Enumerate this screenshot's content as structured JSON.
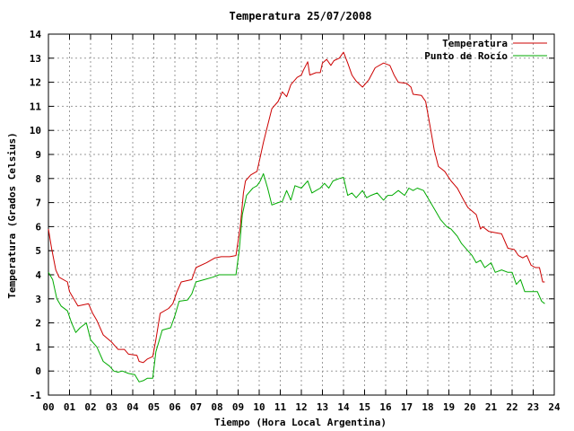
{
  "chart_data": {
    "type": "line",
    "title": "Temperatura 25/07/2008",
    "xlabel": "Tiempo (Hora Local Argentina)",
    "ylabel": "Temperatura (Grados Celsius)",
    "xlim": [
      0,
      24
    ],
    "ylim": [
      -1,
      14
    ],
    "xticks": [
      "00",
      "01",
      "02",
      "03",
      "04",
      "05",
      "06",
      "07",
      "08",
      "09",
      "10",
      "11",
      "12",
      "13",
      "14",
      "15",
      "16",
      "17",
      "18",
      "19",
      "20",
      "21",
      "22",
      "23",
      "24"
    ],
    "yticks": [
      "-1",
      "0",
      "1",
      "2",
      "3",
      "4",
      "5",
      "6",
      "7",
      "8",
      "9",
      "10",
      "11",
      "12",
      "13",
      "14"
    ],
    "grid": true,
    "legend_position": "top-right",
    "series": [
      {
        "name": "Temperatura",
        "color": "#cc0000",
        "points": [
          [
            0.0,
            5.9
          ],
          [
            0.15,
            5.1
          ],
          [
            0.35,
            4.2
          ],
          [
            0.5,
            3.9
          ],
          [
            0.9,
            3.7
          ],
          [
            1.0,
            3.3
          ],
          [
            1.4,
            2.7
          ],
          [
            1.9,
            2.8
          ],
          [
            2.1,
            2.4
          ],
          [
            2.3,
            2.1
          ],
          [
            2.6,
            1.5
          ],
          [
            3.0,
            1.2
          ],
          [
            3.3,
            0.9
          ],
          [
            3.6,
            0.9
          ],
          [
            3.8,
            0.7
          ],
          [
            4.2,
            0.65
          ],
          [
            4.3,
            0.4
          ],
          [
            4.5,
            0.35
          ],
          [
            4.7,
            0.5
          ],
          [
            4.95,
            0.6
          ],
          [
            5.1,
            1.3
          ],
          [
            5.3,
            2.4
          ],
          [
            5.7,
            2.6
          ],
          [
            5.9,
            2.8
          ],
          [
            6.1,
            3.3
          ],
          [
            6.3,
            3.7
          ],
          [
            6.8,
            3.8
          ],
          [
            7.0,
            4.3
          ],
          [
            7.5,
            4.5
          ],
          [
            7.9,
            4.7
          ],
          [
            8.2,
            4.75
          ],
          [
            8.6,
            4.75
          ],
          [
            8.9,
            4.8
          ],
          [
            9.1,
            6.0
          ],
          [
            9.25,
            7.4
          ],
          [
            9.35,
            7.9
          ],
          [
            9.6,
            8.15
          ],
          [
            9.9,
            8.3
          ],
          [
            10.05,
            8.9
          ],
          [
            10.2,
            9.5
          ],
          [
            10.4,
            10.2
          ],
          [
            10.6,
            10.9
          ],
          [
            10.9,
            11.2
          ],
          [
            11.1,
            11.6
          ],
          [
            11.3,
            11.4
          ],
          [
            11.5,
            11.9
          ],
          [
            11.8,
            12.2
          ],
          [
            12.0,
            12.3
          ],
          [
            12.1,
            12.5
          ],
          [
            12.3,
            12.85
          ],
          [
            12.4,
            12.3
          ],
          [
            12.7,
            12.4
          ],
          [
            12.9,
            12.4
          ],
          [
            13.0,
            12.8
          ],
          [
            13.2,
            12.95
          ],
          [
            13.4,
            12.7
          ],
          [
            13.55,
            12.9
          ],
          [
            13.8,
            13.0
          ],
          [
            14.0,
            13.25
          ],
          [
            14.2,
            12.8
          ],
          [
            14.4,
            12.3
          ],
          [
            14.6,
            12.05
          ],
          [
            14.9,
            11.8
          ],
          [
            15.2,
            12.1
          ],
          [
            15.5,
            12.6
          ],
          [
            15.9,
            12.8
          ],
          [
            16.2,
            12.7
          ],
          [
            16.4,
            12.3
          ],
          [
            16.6,
            12.0
          ],
          [
            17.0,
            11.95
          ],
          [
            17.2,
            11.8
          ],
          [
            17.3,
            11.5
          ],
          [
            17.7,
            11.45
          ],
          [
            17.9,
            11.2
          ],
          [
            18.1,
            10.2
          ],
          [
            18.3,
            9.2
          ],
          [
            18.5,
            8.5
          ],
          [
            18.8,
            8.3
          ],
          [
            19.1,
            7.9
          ],
          [
            19.4,
            7.6
          ],
          [
            19.7,
            7.1
          ],
          [
            19.9,
            6.8
          ],
          [
            20.3,
            6.5
          ],
          [
            20.5,
            5.9
          ],
          [
            20.6,
            6.0
          ],
          [
            20.9,
            5.8
          ],
          [
            21.2,
            5.75
          ],
          [
            21.5,
            5.7
          ],
          [
            21.8,
            5.1
          ],
          [
            22.1,
            5.05
          ],
          [
            22.3,
            4.8
          ],
          [
            22.5,
            4.7
          ],
          [
            22.7,
            4.8
          ],
          [
            22.9,
            4.4
          ],
          [
            23.1,
            4.3
          ],
          [
            23.3,
            4.3
          ],
          [
            23.45,
            3.7
          ],
          [
            23.55,
            3.7
          ]
        ]
      },
      {
        "name": "Punto de Rocío",
        "color": "#00aa00",
        "points": [
          [
            0.0,
            4.1
          ],
          [
            0.2,
            3.8
          ],
          [
            0.4,
            3.0
          ],
          [
            0.6,
            2.7
          ],
          [
            0.9,
            2.5
          ],
          [
            1.1,
            2.0
          ],
          [
            1.3,
            1.6
          ],
          [
            1.5,
            1.8
          ],
          [
            1.8,
            2.0
          ],
          [
            2.0,
            1.3
          ],
          [
            2.3,
            1.0
          ],
          [
            2.6,
            0.4
          ],
          [
            2.9,
            0.2
          ],
          [
            3.1,
            0.0
          ],
          [
            3.3,
            -0.05
          ],
          [
            3.5,
            0.0
          ],
          [
            3.8,
            -0.1
          ],
          [
            4.1,
            -0.15
          ],
          [
            4.3,
            -0.45
          ],
          [
            4.5,
            -0.4
          ],
          [
            4.7,
            -0.3
          ],
          [
            4.95,
            -0.3
          ],
          [
            5.1,
            0.8
          ],
          [
            5.4,
            1.7
          ],
          [
            5.8,
            1.8
          ],
          [
            6.0,
            2.3
          ],
          [
            6.2,
            2.9
          ],
          [
            6.6,
            2.95
          ],
          [
            6.8,
            3.2
          ],
          [
            7.0,
            3.7
          ],
          [
            7.4,
            3.8
          ],
          [
            7.8,
            3.9
          ],
          [
            8.1,
            4.0
          ],
          [
            8.5,
            4.0
          ],
          [
            8.9,
            4.0
          ],
          [
            9.05,
            5.0
          ],
          [
            9.2,
            6.5
          ],
          [
            9.4,
            7.3
          ],
          [
            9.7,
            7.6
          ],
          [
            9.9,
            7.7
          ],
          [
            10.05,
            7.9
          ],
          [
            10.2,
            8.2
          ],
          [
            10.4,
            7.6
          ],
          [
            10.6,
            6.9
          ],
          [
            10.9,
            7.0
          ],
          [
            11.1,
            7.05
          ],
          [
            11.3,
            7.5
          ],
          [
            11.5,
            7.1
          ],
          [
            11.7,
            7.7
          ],
          [
            12.0,
            7.6
          ],
          [
            12.3,
            7.9
          ],
          [
            12.5,
            7.4
          ],
          [
            12.7,
            7.5
          ],
          [
            12.9,
            7.6
          ],
          [
            13.1,
            7.8
          ],
          [
            13.3,
            7.6
          ],
          [
            13.5,
            7.9
          ],
          [
            13.8,
            8.0
          ],
          [
            14.0,
            8.05
          ],
          [
            14.2,
            7.3
          ],
          [
            14.4,
            7.4
          ],
          [
            14.6,
            7.2
          ],
          [
            14.9,
            7.5
          ],
          [
            15.1,
            7.2
          ],
          [
            15.3,
            7.3
          ],
          [
            15.6,
            7.4
          ],
          [
            15.9,
            7.1
          ],
          [
            16.1,
            7.3
          ],
          [
            16.3,
            7.3
          ],
          [
            16.6,
            7.5
          ],
          [
            16.9,
            7.3
          ],
          [
            17.1,
            7.6
          ],
          [
            17.3,
            7.5
          ],
          [
            17.5,
            7.6
          ],
          [
            17.8,
            7.5
          ],
          [
            18.0,
            7.2
          ],
          [
            18.2,
            6.9
          ],
          [
            18.4,
            6.6
          ],
          [
            18.6,
            6.3
          ],
          [
            18.9,
            6.0
          ],
          [
            19.1,
            5.9
          ],
          [
            19.4,
            5.6
          ],
          [
            19.6,
            5.3
          ],
          [
            19.9,
            5.0
          ],
          [
            20.1,
            4.8
          ],
          [
            20.3,
            4.5
          ],
          [
            20.5,
            4.6
          ],
          [
            20.7,
            4.3
          ],
          [
            21.0,
            4.5
          ],
          [
            21.2,
            4.1
          ],
          [
            21.5,
            4.2
          ],
          [
            21.8,
            4.1
          ],
          [
            22.0,
            4.1
          ],
          [
            22.2,
            3.6
          ],
          [
            22.4,
            3.8
          ],
          [
            22.6,
            3.3
          ],
          [
            22.8,
            3.3
          ],
          [
            23.0,
            3.3
          ],
          [
            23.2,
            3.3
          ],
          [
            23.4,
            2.9
          ],
          [
            23.55,
            2.8
          ]
        ]
      }
    ]
  }
}
